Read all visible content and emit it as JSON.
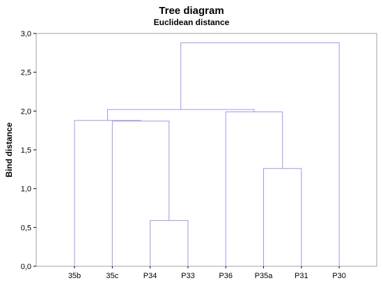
{
  "chart_data": {
    "type": "dendrogram",
    "title": "Tree diagram",
    "subtitle": "Euclidean distance",
    "ylabel": "Bind distance",
    "xlabel": "",
    "ylim": [
      0,
      3
    ],
    "yticks": [
      "0,0",
      "0,5",
      "1,0",
      "1,5",
      "2,0",
      "2,5",
      "3,0"
    ],
    "yticks_values": [
      0,
      0.5,
      1.0,
      1.5,
      2.0,
      2.5,
      3.0
    ],
    "leaves": [
      "35b",
      "35c",
      "P34",
      "P33",
      "P36",
      "P35a",
      "P31",
      "P30"
    ],
    "link_color": "#9a9ae8",
    "links": [
      {
        "left": "P34",
        "right": "P33",
        "height": 0.59
      },
      {
        "left": "P35a",
        "right": "P31",
        "height": 1.26
      },
      {
        "left": "35c",
        "right": "P34+P33",
        "height": 1.87
      },
      {
        "left": "35b",
        "right": "35c+P34+P33",
        "height": 1.88
      },
      {
        "left": "P36",
        "right": "P35a+P31",
        "height": 1.99
      },
      {
        "left": "35b+35c+P34+P33",
        "right": "P36+P35a+P31",
        "height": 2.02
      },
      {
        "left": "35b+35c+P34+P33+P36+P35a+P31",
        "right": "P30",
        "height": 2.88
      }
    ]
  }
}
